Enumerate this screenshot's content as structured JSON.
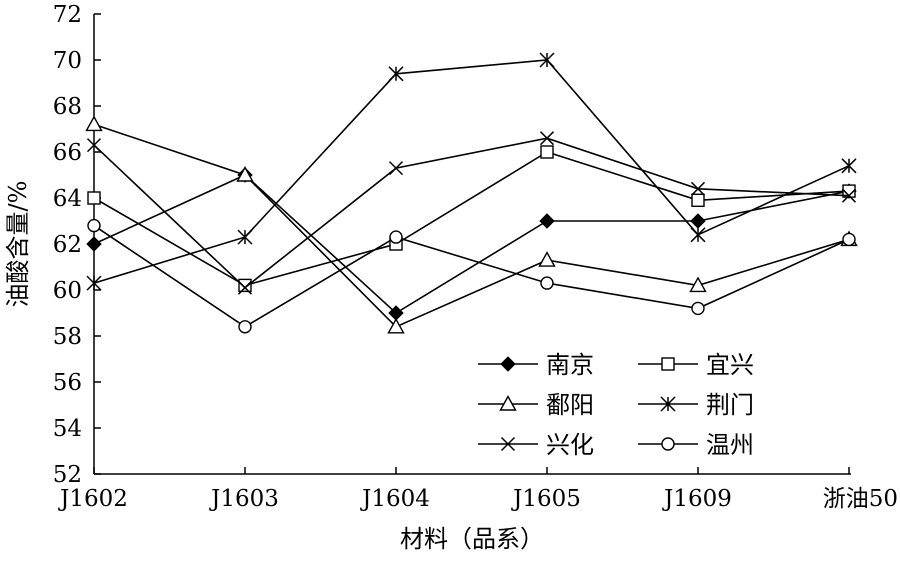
{
  "chart_data": {
    "type": "line",
    "title": "",
    "xlabel": "材料（品系）",
    "ylabel": "油酸含量/%",
    "categories": [
      "J1602",
      "J1603",
      "J1604",
      "J1605",
      "J1609",
      "浙油50"
    ],
    "ylim": [
      52,
      72
    ],
    "yticks": [
      "52",
      "54",
      "56",
      "58",
      "60",
      "62",
      "64",
      "66",
      "68",
      "70",
      "72"
    ],
    "grid": false,
    "legend_position": "bottom-right",
    "series": [
      {
        "name": "南京",
        "marker": "filled-diamond",
        "values": [
          62.0,
          65.0,
          59.0,
          63.0,
          63.0,
          64.3
        ]
      },
      {
        "name": "宜兴",
        "marker": "square",
        "values": [
          64.0,
          60.2,
          62.0,
          66.0,
          63.9,
          64.3
        ]
      },
      {
        "name": "鄱阳",
        "marker": "triangle",
        "values": [
          67.2,
          65.0,
          58.4,
          61.3,
          60.2,
          62.2
        ]
      },
      {
        "name": "荆门",
        "marker": "asterisk",
        "values": [
          60.3,
          62.3,
          69.4,
          70.0,
          62.4,
          65.4
        ]
      },
      {
        "name": "兴化",
        "marker": "cross",
        "values": [
          66.3,
          60.1,
          65.3,
          66.6,
          64.4,
          64.1
        ]
      },
      {
        "name": "温州",
        "marker": "circle",
        "values": [
          62.8,
          58.4,
          62.3,
          60.3,
          59.2,
          62.2
        ]
      }
    ]
  }
}
